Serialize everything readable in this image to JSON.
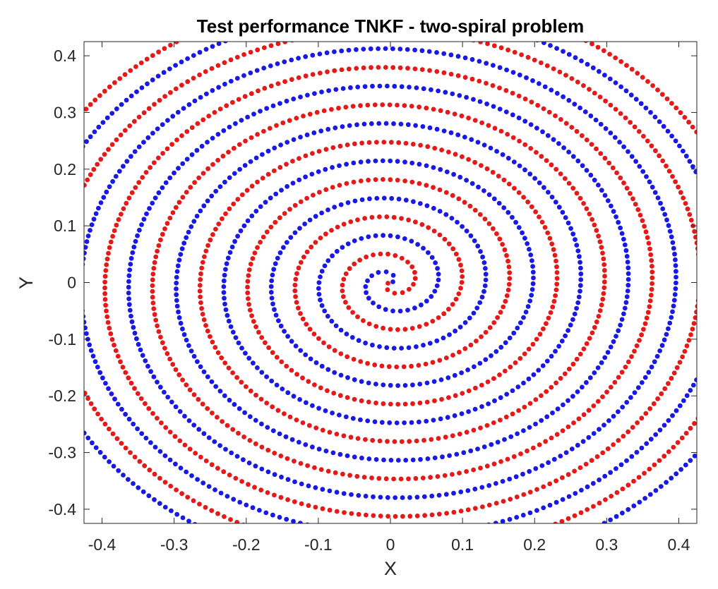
{
  "chart_data": {
    "type": "scatter",
    "title": "Test performance TNKF - two-spiral problem",
    "xlabel": "X",
    "ylabel": "Y",
    "xlim": [
      -0.425,
      0.425
    ],
    "ylim": [
      -0.425,
      0.425
    ],
    "xticks": [
      -0.4,
      -0.3,
      -0.2,
      -0.1,
      0,
      0.1,
      0.2,
      0.3,
      0.4
    ],
    "yticks": [
      -0.4,
      -0.3,
      -0.2,
      -0.1,
      0,
      0.1,
      0.2,
      0.3,
      0.4
    ],
    "xtick_labels": [
      "-0.4",
      "-0.3",
      "-0.2",
      "-0.1",
      "0",
      "0.1",
      "0.2",
      "0.3",
      "0.4"
    ],
    "ytick_labels": [
      "-0.4",
      "-0.3",
      "-0.2",
      "-0.1",
      "0",
      "0.1",
      "0.2",
      "0.3",
      "0.4"
    ],
    "grid": false,
    "legend": "none",
    "series": [
      {
        "color": "#e61919",
        "spiral": {
          "r_step_per_turn": 0.066,
          "phase_deg": 180,
          "turns": 8,
          "start_r": 0.0
        }
      },
      {
        "color": "#1919e6",
        "spiral": {
          "r_step_per_turn": 0.066,
          "phase_deg": 0,
          "turns": 8,
          "start_r": 0.0
        }
      }
    ],
    "point_spacing": 0.0102
  }
}
